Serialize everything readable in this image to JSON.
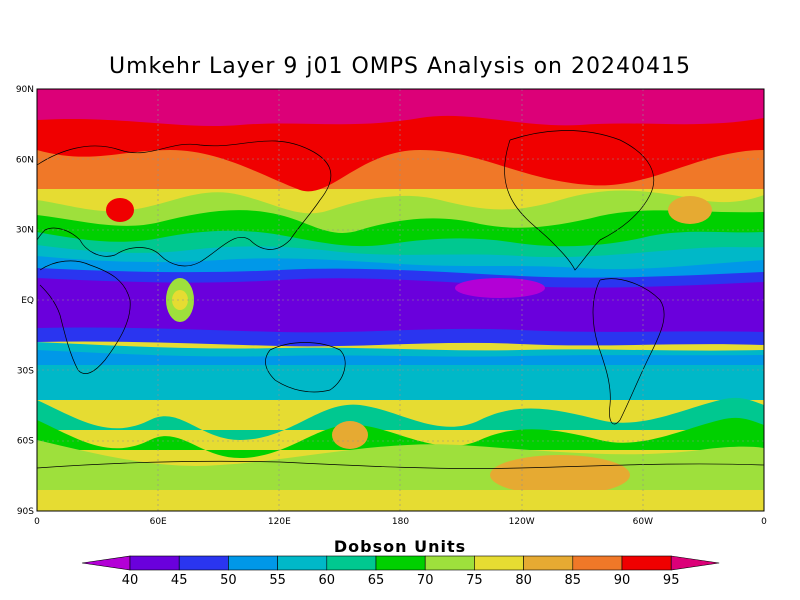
{
  "title": "Umkehr Layer 9 j01 OMPS Analysis on 20240415",
  "lat_ticks": [
    {
      "lat": 90,
      "label": "90N"
    },
    {
      "lat": 60,
      "label": "60N"
    },
    {
      "lat": 30,
      "label": "30N"
    },
    {
      "lat": 0,
      "label": "EQ"
    },
    {
      "lat": -30,
      "label": "30S"
    },
    {
      "lat": -60,
      "label": "60S"
    },
    {
      "lat": -90,
      "label": "90S"
    }
  ],
  "lon_ticks": [
    {
      "lon": 0,
      "label": "0"
    },
    {
      "lon": 60,
      "label": "60E"
    },
    {
      "lon": 120,
      "label": "120E"
    },
    {
      "lon": 180,
      "label": "180"
    },
    {
      "lon": 240,
      "label": "120W"
    },
    {
      "lon": 300,
      "label": "60W"
    },
    {
      "lon": 360,
      "label": "0"
    }
  ],
  "colorbar": {
    "title": "Dobson Units",
    "labels": [
      "40",
      "45",
      "50",
      "55",
      "60",
      "65",
      "70",
      "75",
      "80",
      "85",
      "90",
      "95"
    ],
    "colors": [
      "#b300d6",
      "#6a00dc",
      "#2a35f0",
      "#0098e8",
      "#00b8c8",
      "#00c890",
      "#00d000",
      "#9ee03c",
      "#e6dc32",
      "#e6aa32",
      "#f07828",
      "#f00000",
      "#dc0078"
    ]
  },
  "map_colors": {
    "background": "#e6dc32",
    "grid": "#909090",
    "coast": "#000000"
  }
}
